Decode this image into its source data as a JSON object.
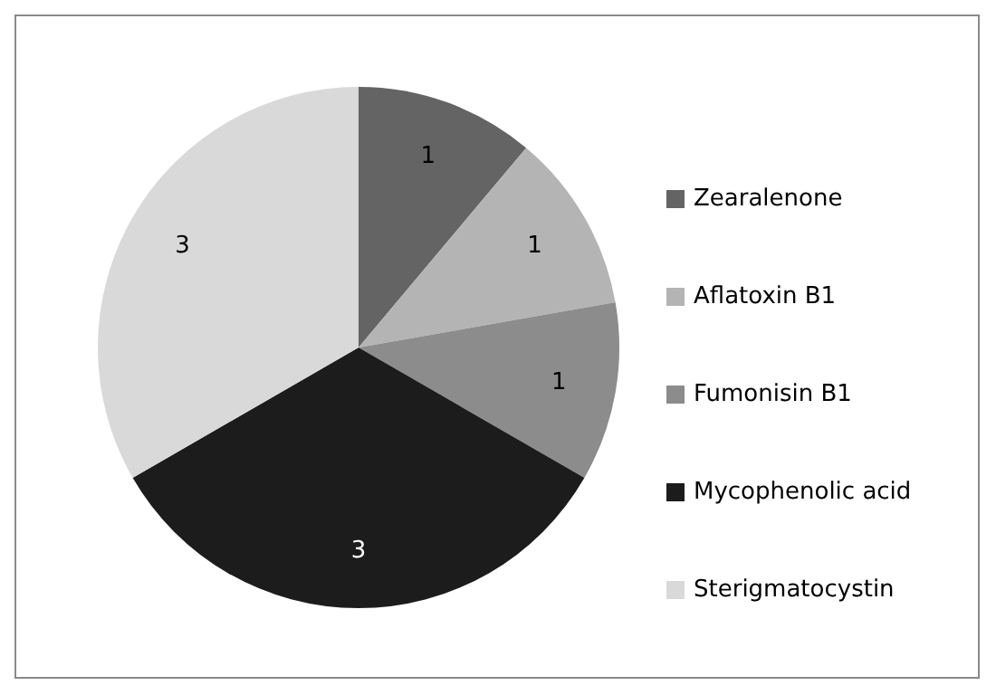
{
  "chart_data": {
    "type": "pie",
    "categories": [
      "Zearalenone",
      "Aflatoxin B1",
      "Fumonisin B1",
      "Mycophenolic acid",
      "Sterigmatocystin"
    ],
    "values": [
      1,
      1,
      1,
      3,
      3
    ],
    "colors": [
      "#646464",
      "#b4b4b4",
      "#8c8c8c",
      "#1c1c1c",
      "#d9d9d9"
    ],
    "data_labels": true,
    "legend": "right"
  }
}
